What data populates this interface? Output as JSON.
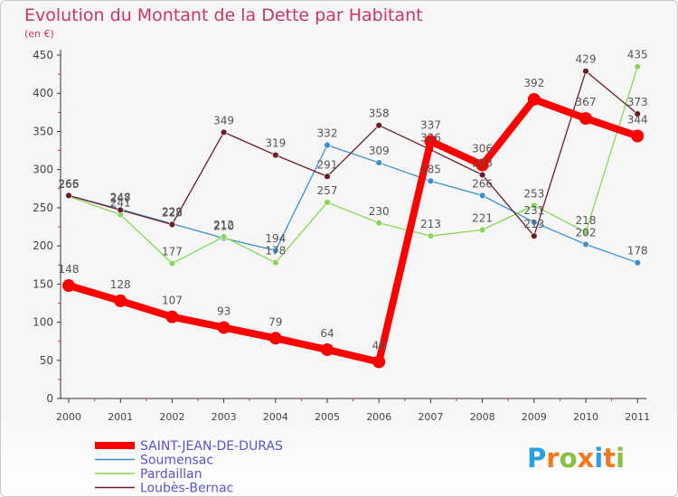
{
  "chart_data": {
    "type": "line",
    "title": "Evolution du Montant de la Dette par Habitant",
    "subtitle": "(en €)",
    "xlabel": "",
    "ylabel": "",
    "categories": [
      "2000",
      "2001",
      "2002",
      "2003",
      "2004",
      "2005",
      "2006",
      "2007",
      "2008",
      "2009",
      "2010",
      "2011"
    ],
    "ylim": [
      0,
      450
    ],
    "yticks": [
      0,
      50,
      100,
      150,
      200,
      250,
      300,
      350,
      400,
      450
    ],
    "grid": false,
    "legend_position": "bottom-left",
    "series": [
      {
        "name": "SAINT-JEAN-DE-DURAS",
        "color": "#ff0000",
        "values": [
          148,
          128,
          107,
          93,
          79,
          64,
          48,
          337,
          306,
          392,
          367,
          344
        ]
      },
      {
        "name": "Soumensac",
        "color": "#3d8fd0",
        "values": [
          266,
          248,
          229,
          210,
          194,
          332,
          309,
          285,
          266,
          231,
          202,
          178
        ]
      },
      {
        "name": "Pardaillan",
        "color": "#88d855",
        "values": [
          265,
          241,
          177,
          212,
          178,
          257,
          230,
          213,
          221,
          253,
          218,
          435
        ]
      },
      {
        "name": "Loubès-Bernac",
        "color": "#6b1d25",
        "values": [
          266,
          247,
          228,
          349,
          319,
          291,
          358,
          326,
          293,
          213,
          429,
          373
        ]
      }
    ]
  },
  "logo": {
    "letters": [
      "P",
      "r",
      "o",
      "x",
      "i",
      "t",
      "i"
    ],
    "colors": [
      "#2aa0dc",
      "#f07820",
      "#88c040",
      "#f07820",
      "#2aa0dc",
      "#f07820",
      "#88c040"
    ]
  }
}
